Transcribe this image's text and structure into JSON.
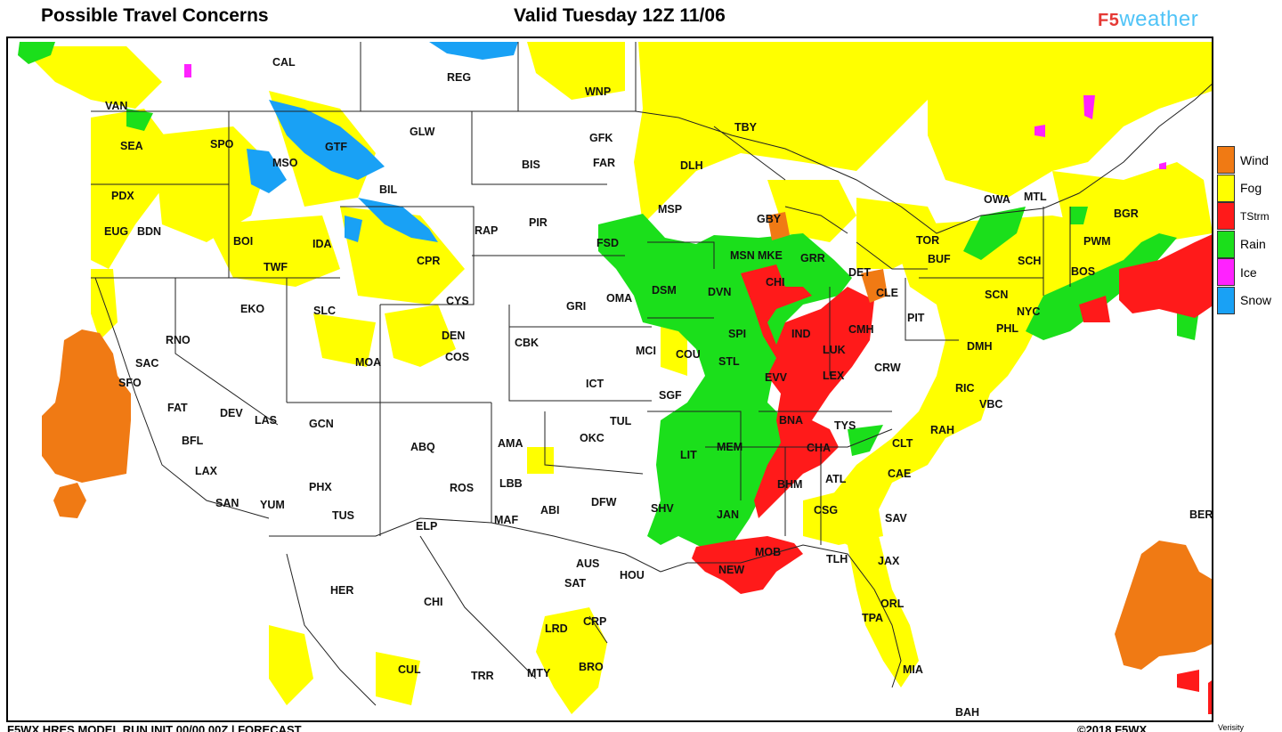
{
  "header": {
    "title_left": "Possible Travel Concerns",
    "title_center": "Valid Tuesday 12Z 11/06",
    "brand_prefix": "F5",
    "brand_suffix": "weather"
  },
  "legend": [
    {
      "label": "Wind",
      "color": "#f07a14"
    },
    {
      "label": "Fog",
      "color": "#ffff00"
    },
    {
      "label": "TStrm",
      "color": "#ff1a1a"
    },
    {
      "label": "Rain",
      "color": "#1bdf1b"
    },
    {
      "label": "Ice",
      "color": "#ff22ff"
    },
    {
      "label": "Snow",
      "color": "#19a1f5"
    }
  ],
  "footer": {
    "left": "F5WX HRES MODEL RUN INIT 00/00 00Z | FORECAST",
    "right": "©2018 F5WX",
    "small": "Verisity"
  },
  "cities": [
    "CAL",
    "REG",
    "WNP",
    "VAN",
    "SEA",
    "SPO",
    "GTF",
    "GLW",
    "GFK",
    "BIS",
    "FAR",
    "TBY",
    "DLH",
    "MSO",
    "PDX",
    "BIL",
    "EUG",
    "BDN",
    "BOI",
    "IDA",
    "TWF",
    "RAP",
    "PIR",
    "MSP",
    "GBY",
    "FSD",
    "MSN",
    "MKE",
    "GRR",
    "TOR",
    "OWA",
    "MTL",
    "BGR",
    "PWM",
    "SCH",
    "BOS",
    "BUF",
    "DET",
    "CLE",
    "CHI",
    "EKO",
    "SLC",
    "CPR",
    "CYS",
    "DEN",
    "COS",
    "MOA",
    "RNO",
    "SAC",
    "SFO",
    "FAT",
    "DEV",
    "LAS",
    "BFL",
    "LAX",
    "SAN",
    "YUM",
    "GCN",
    "PHX",
    "TUS",
    "ABQ",
    "ROS",
    "OMA",
    "DSM",
    "DVN",
    "GRI",
    "CBK",
    "ICT",
    "MCI",
    "COU",
    "SPI",
    "STL",
    "IND",
    "CMH",
    "LUK",
    "LEX",
    "EVV",
    "PIT",
    "SCN",
    "NYC",
    "PHL",
    "DMH",
    "RIC",
    "VBC",
    "CRW",
    "SGF",
    "TUL",
    "OKC",
    "AMA",
    "LBB",
    "MAF",
    "ABI",
    "DFW",
    "ELP",
    "LIT",
    "MEM",
    "BNA",
    "TYS",
    "CHA",
    "CLT",
    "RAH",
    "CAE",
    "ATL",
    "BHM",
    "SHV",
    "JAN",
    "CSG",
    "SAV",
    "MOB",
    "NEW",
    "TLH",
    "JAX",
    "ORL",
    "TPA",
    "MIA",
    "AUS",
    "SAT",
    "HOU",
    "CRP",
    "LRD",
    "BRO",
    "MTY",
    "TRR",
    "HER",
    "CHI",
    "CUL",
    "BER",
    "BAH"
  ]
}
